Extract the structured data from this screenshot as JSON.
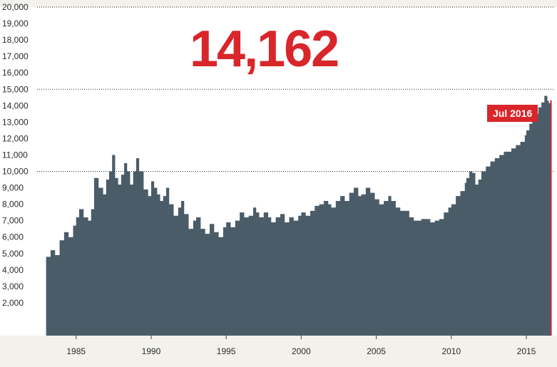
{
  "headline": {
    "value_text": "14,162"
  },
  "callout": {
    "label": "Jul 2016"
  },
  "colors": {
    "area": "#4b5c69",
    "accent": "#d9262b",
    "plot_bg": "#ffffff",
    "page_bg": "#f2f1ec",
    "gridline": "#222222"
  },
  "chart_data": {
    "type": "area",
    "title": "",
    "xlabel": "",
    "ylabel": "",
    "ylim": [
      0,
      20000
    ],
    "xlim": [
      1982.4,
      2016.9
    ],
    "grid": "dotted lines at 10,000, 15,000 and 20,000",
    "y_ticks": [
      "2,000",
      "3,000",
      "4,000",
      "5,000",
      "6,000",
      "7,000",
      "8,000",
      "9,000",
      "10,000",
      "11,000",
      "12,000",
      "13,000",
      "14,000",
      "15,000",
      "16,000",
      "17,000",
      "18,000",
      "19,000",
      "20,000"
    ],
    "x_ticks": [
      "1985",
      "1990",
      "1995",
      "2000",
      "2005",
      "2010",
      "2015"
    ],
    "highlight": {
      "x": 2016.5,
      "y": 14162,
      "label": "Jul 2016"
    },
    "series": [
      {
        "x": [
          1983.0,
          1983.3,
          1983.6,
          1983.9,
          1984.2,
          1984.5,
          1984.8,
          1985.0,
          1985.2,
          1985.5,
          1985.8,
          1986.0,
          1986.2,
          1986.5,
          1986.8,
          1987.0,
          1987.2,
          1987.4,
          1987.6,
          1987.8,
          1988.0,
          1988.2,
          1988.4,
          1988.6,
          1988.8,
          1989.0,
          1989.2,
          1989.5,
          1989.8,
          1990.0,
          1990.2,
          1990.4,
          1990.6,
          1990.8,
          1991.0,
          1991.2,
          1991.5,
          1991.8,
          1992.0,
          1992.2,
          1992.5,
          1992.8,
          1993.0,
          1993.3,
          1993.6,
          1993.9,
          1994.2,
          1994.5,
          1994.8,
          1995.0,
          1995.3,
          1995.6,
          1995.9,
          1996.2,
          1996.5,
          1996.8,
          1997.0,
          1997.2,
          1997.5,
          1997.8,
          1998.0,
          1998.3,
          1998.6,
          1998.9,
          1999.2,
          1999.5,
          1999.8,
          2000.0,
          2000.3,
          2000.6,
          2000.9,
          2001.2,
          2001.5,
          2001.8,
          2002.0,
          2002.3,
          2002.6,
          2002.9,
          2003.2,
          2003.5,
          2003.8,
          2004.0,
          2004.3,
          2004.6,
          2004.9,
          2005.2,
          2005.5,
          2005.8,
          2006.0,
          2006.3,
          2006.6,
          2006.9,
          2007.2,
          2007.5,
          2007.8,
          2008.0,
          2008.3,
          2008.6,
          2008.9,
          2009.2,
          2009.5,
          2009.8,
          2010.0,
          2010.3,
          2010.6,
          2010.9,
          2011.0,
          2011.2,
          2011.4,
          2011.6,
          2011.8,
          2012.0,
          2012.3,
          2012.6,
          2012.9,
          2013.2,
          2013.5,
          2013.8,
          2014.0,
          2014.3,
          2014.6,
          2014.9,
          2015.0,
          2015.2,
          2015.4,
          2015.6,
          2015.8,
          2016.0,
          2016.2,
          2016.4,
          2016.5
        ],
        "y": [
          4800,
          5200,
          4900,
          5800,
          6300,
          6000,
          6700,
          7200,
          7700,
          7200,
          7000,
          7700,
          9600,
          9000,
          8600,
          9500,
          10000,
          11000,
          9600,
          9200,
          9800,
          10500,
          10000,
          9200,
          10000,
          10800,
          10000,
          8900,
          8500,
          9400,
          9000,
          8600,
          8200,
          8500,
          9000,
          8000,
          7300,
          7800,
          8200,
          7400,
          6500,
          7000,
          7200,
          6500,
          6200,
          6800,
          6300,
          6000,
          6600,
          6900,
          6600,
          7000,
          7500,
          7200,
          7300,
          7800,
          7500,
          7200,
          7500,
          7200,
          6900,
          7200,
          7400,
          6900,
          7200,
          7000,
          7300,
          7500,
          7300,
          7600,
          7900,
          8000,
          8200,
          8000,
          7800,
          8200,
          8500,
          8200,
          8700,
          9000,
          8500,
          8600,
          9000,
          8700,
          8300,
          8000,
          8200,
          8500,
          8200,
          7800,
          7600,
          7600,
          7200,
          7000,
          7000,
          7100,
          7100,
          6900,
          7000,
          7100,
          7500,
          7800,
          8000,
          8500,
          8800,
          9300,
          9600,
          10000,
          9900,
          9200,
          9500,
          10000,
          10300,
          10600,
          10800,
          11000,
          11200,
          11200,
          11400,
          11600,
          11800,
          12200,
          12500,
          12900,
          13300,
          13500,
          13900,
          14200,
          14600,
          14300,
          14162
        ]
      }
    ]
  }
}
